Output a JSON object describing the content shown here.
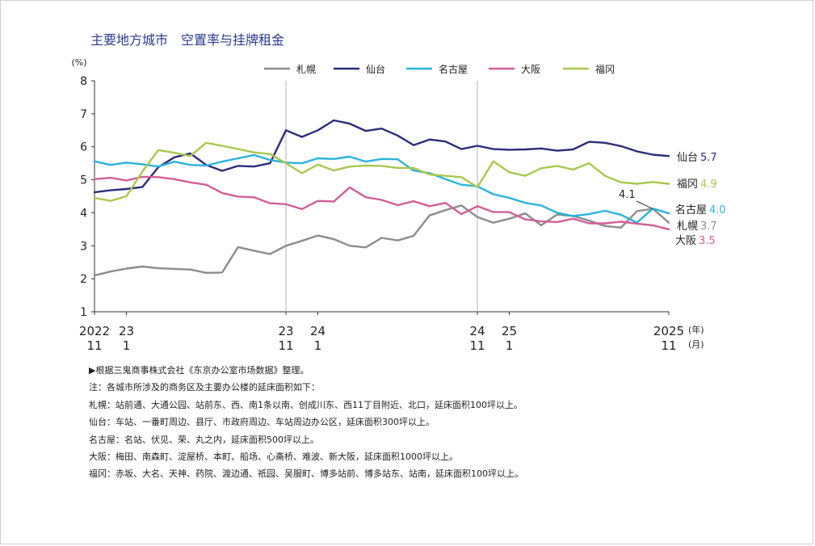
{
  "title": "主要地方城市　空置率与挂牌租金",
  "chart_data": {
    "type": "line",
    "ylabel": "(%)",
    "ylim": [
      1,
      8
    ],
    "yticks": [
      "1",
      "2",
      "3",
      "4",
      "5",
      "6",
      "7",
      "8"
    ],
    "n_points": 37,
    "x_ticks": [
      {
        "index": 0,
        "year": "2022",
        "month": "11"
      },
      {
        "index": 2,
        "year": "23",
        "month": "1"
      },
      {
        "index": 12,
        "year": "23",
        "month": "11"
      },
      {
        "index": 14,
        "year": "24",
        "month": "1"
      },
      {
        "index": 24,
        "year": "24",
        "month": "11"
      },
      {
        "index": 26,
        "year": "25",
        "month": "1"
      },
      {
        "index": 36,
        "year": "2025",
        "month": "11"
      }
    ],
    "x_unit_year": "(年)",
    "x_unit_month": "(月)",
    "vlines": [
      12,
      24
    ],
    "series": [
      {
        "name": "札幌",
        "color": "#8c8c8c",
        "end_label": "札幌",
        "end_value": "3.7",
        "values": [
          2.1,
          2.22,
          2.31,
          2.37,
          2.32,
          2.3,
          2.28,
          2.18,
          2.19,
          2.96,
          2.85,
          2.75,
          3.0,
          3.15,
          3.31,
          3.2,
          3.0,
          2.95,
          3.24,
          3.16,
          3.3,
          3.92,
          4.08,
          4.22,
          3.87,
          3.7,
          3.82,
          3.98,
          3.62,
          3.95,
          3.9,
          3.76,
          3.6,
          3.55,
          4.05,
          4.12,
          3.7
        ]
      },
      {
        "name": "仙台",
        "color": "#2b2d7a",
        "end_label": "仙台",
        "end_value": "5.7",
        "values": [
          4.62,
          4.68,
          4.72,
          4.78,
          5.38,
          5.68,
          5.8,
          5.45,
          5.27,
          5.42,
          5.4,
          5.5,
          6.5,
          6.3,
          6.5,
          6.8,
          6.7,
          6.48,
          6.55,
          6.34,
          6.05,
          6.22,
          6.16,
          5.93,
          6.03,
          5.93,
          5.91,
          5.92,
          5.95,
          5.88,
          5.92,
          6.15,
          6.12,
          6.02,
          5.86,
          5.76,
          5.72
        ]
      },
      {
        "name": "名古屋",
        "color": "#2ab3dc",
        "end_label": "名古屋",
        "end_value": "4.0",
        "values": [
          5.56,
          5.45,
          5.52,
          5.47,
          5.4,
          5.55,
          5.45,
          5.43,
          5.55,
          5.65,
          5.75,
          5.6,
          5.52,
          5.5,
          5.65,
          5.63,
          5.7,
          5.55,
          5.63,
          5.62,
          5.28,
          5.2,
          5.02,
          4.85,
          4.8,
          4.56,
          4.45,
          4.3,
          4.22,
          4.0,
          3.9,
          3.96,
          4.06,
          3.94,
          3.7,
          4.13,
          3.98
        ]
      },
      {
        "name": "大阪",
        "color": "#d35e98",
        "end_label": "大阪",
        "end_value": "3.5",
        "values": [
          5.02,
          5.06,
          4.98,
          5.09,
          5.08,
          5.02,
          4.92,
          4.85,
          4.6,
          4.49,
          4.47,
          4.29,
          4.26,
          4.11,
          4.36,
          4.34,
          4.77,
          4.47,
          4.39,
          4.23,
          4.35,
          4.2,
          4.3,
          3.96,
          4.2,
          4.02,
          4.02,
          3.8,
          3.74,
          3.72,
          3.82,
          3.68,
          3.68,
          3.73,
          3.67,
          3.62,
          3.5
        ]
      },
      {
        "name": "福冈",
        "color": "#a8c84e",
        "end_label": "福冈",
        "end_value": "4.9",
        "values": [
          4.45,
          4.36,
          4.5,
          5.25,
          5.9,
          5.82,
          5.72,
          6.12,
          6.03,
          5.93,
          5.83,
          5.78,
          5.5,
          5.2,
          5.46,
          5.28,
          5.4,
          5.43,
          5.42,
          5.36,
          5.36,
          5.16,
          5.12,
          5.08,
          4.78,
          5.56,
          5.23,
          5.12,
          5.35,
          5.42,
          5.31,
          5.5,
          5.12,
          4.92,
          4.88,
          4.93,
          4.88
        ]
      }
    ],
    "annotations": [
      {
        "text": "4.1",
        "series": "札幌",
        "index": 35
      }
    ],
    "legend_position": "top"
  },
  "notes": [
    "▶根据三鬼商事株式会社《东京办公室市场数据》整理。",
    "注：各城市所涉及的商务区及主要办公楼的延床面积如下：",
    "札幌：站前通、大通公园、站前东、西、南1条以南、创成川东、西11丁目附近、北口，延床面积100坪以上。",
    "仙台：车站、一番町周边、县厅、市政府周边、车站周边办公区，延床面积300坪以上。",
    "名古屋：名站、伏见、荣、丸之内，延床面积500坪以上。",
    "大阪：梅田、南森町、淀屋桥、本町、船场、心斋桥、难波、新大阪，延床面积1000坪以上。",
    "福冈：赤坂、大名、天神、药院、渡边通、祇园、吴服町、博多站前、博多站东、站南，延床面积100坪以上。"
  ]
}
